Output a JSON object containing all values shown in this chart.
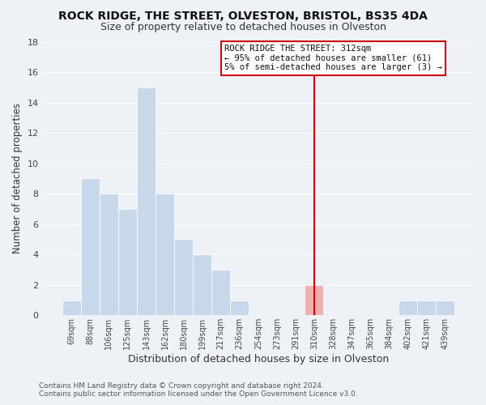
{
  "title": "ROCK RIDGE, THE STREET, OLVESTON, BRISTOL, BS35 4DA",
  "subtitle": "Size of property relative to detached houses in Olveston",
  "xlabel": "Distribution of detached houses by size in Olveston",
  "ylabel": "Number of detached properties",
  "bin_labels": [
    "69sqm",
    "88sqm",
    "106sqm",
    "125sqm",
    "143sqm",
    "162sqm",
    "180sqm",
    "199sqm",
    "217sqm",
    "236sqm",
    "254sqm",
    "273sqm",
    "291sqm",
    "310sqm",
    "328sqm",
    "347sqm",
    "365sqm",
    "384sqm",
    "402sqm",
    "421sqm",
    "439sqm"
  ],
  "bar_heights": [
    1,
    9,
    8,
    7,
    15,
    8,
    5,
    4,
    3,
    1,
    0,
    0,
    0,
    2,
    0,
    0,
    0,
    0,
    1,
    1,
    1
  ],
  "bar_color": "#c8d8eb",
  "highlight_bar_indices": [
    13
  ],
  "highlight_bar_color": "#f0b0b0",
  "vline_color": "#cc0000",
  "vline_x_index": 13,
  "annotation_line1": "ROCK RIDGE THE STREET: 312sqm",
  "annotation_line2": "← 95% of detached houses are smaller (61)",
  "annotation_line3": "5% of semi-detached houses are larger (3) →",
  "annotation_box_color": "#ffffff",
  "annotation_box_edgecolor": "#cc0000",
  "footer1": "Contains HM Land Registry data © Crown copyright and database right 2024.",
  "footer2": "Contains public sector information licensed under the Open Government Licence v3.0.",
  "ylim": [
    0,
    18
  ],
  "yticks": [
    0,
    2,
    4,
    6,
    8,
    10,
    12,
    14,
    16,
    18
  ],
  "background_color": "#eef2f7",
  "grid_color": "#ffffff",
  "title_fontsize": 10,
  "subtitle_fontsize": 9
}
